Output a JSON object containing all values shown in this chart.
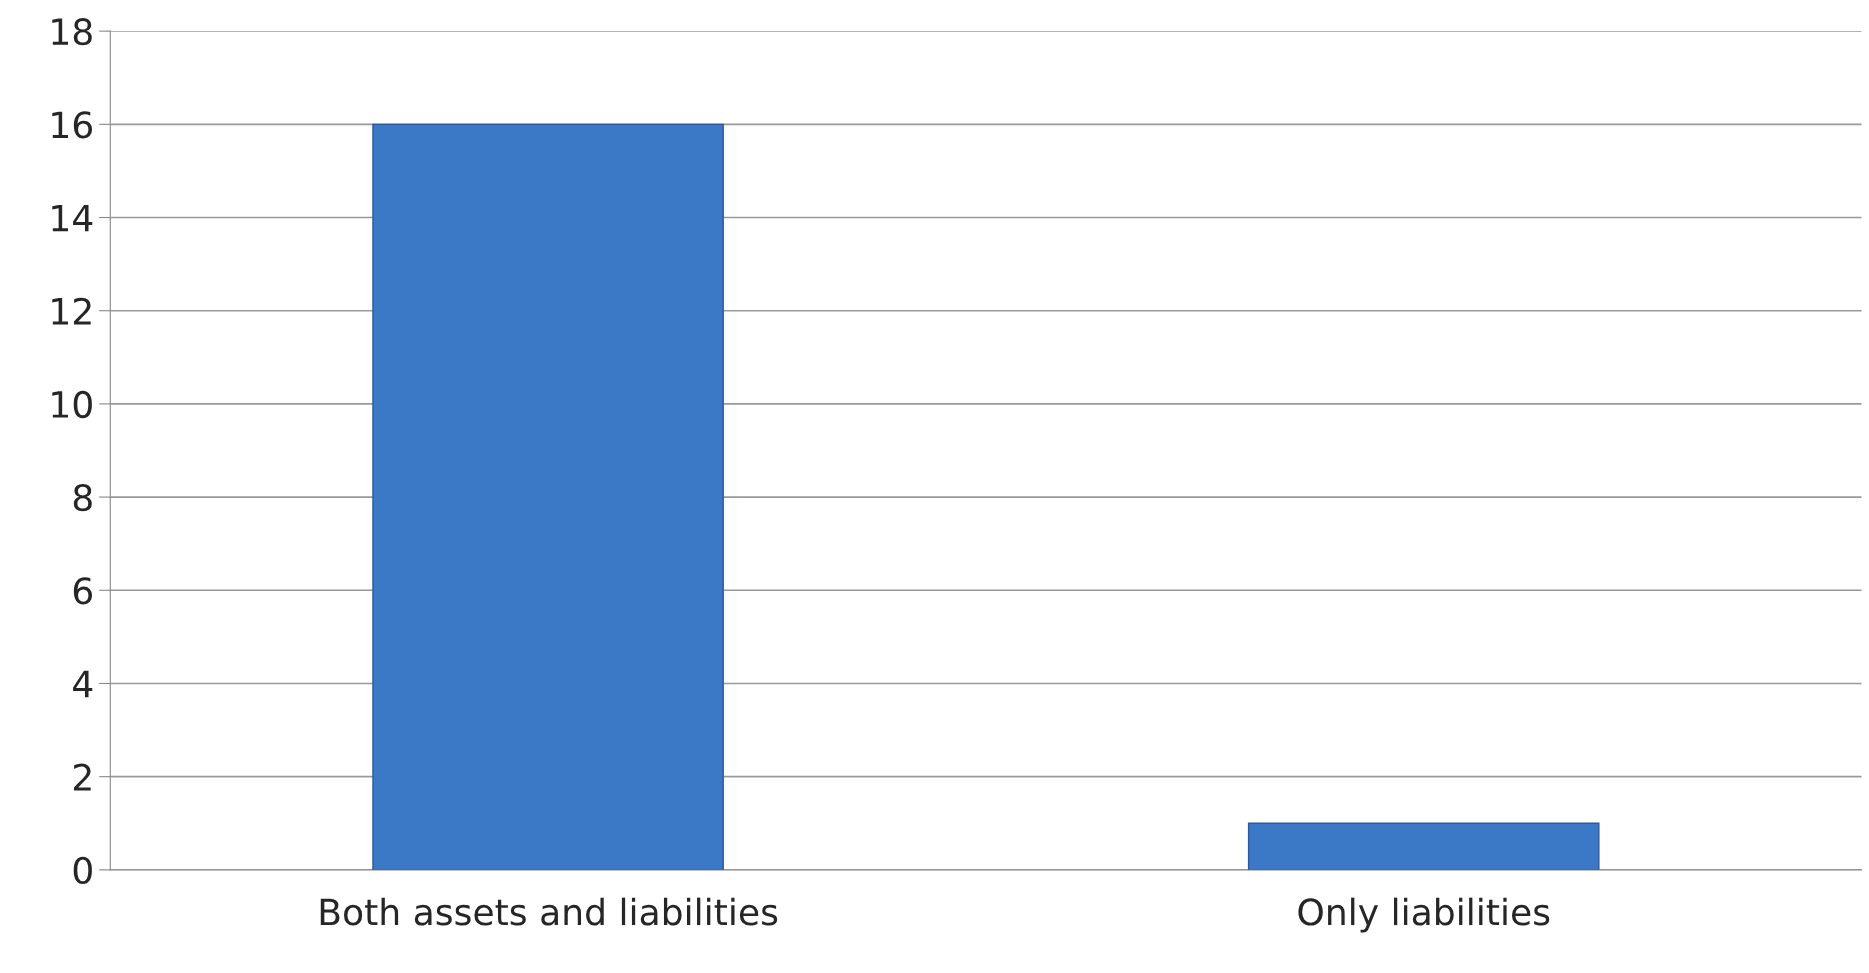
{
  "chart_data": {
    "type": "bar",
    "categories": [
      "Both assets and liabilities",
      "Only liabilities"
    ],
    "values": [
      16,
      1
    ],
    "color": "#3b78c6",
    "ylim": [
      0,
      18
    ],
    "yticks": [
      0,
      2,
      4,
      6,
      8,
      10,
      12,
      14,
      16,
      18
    ],
    "grid": "y"
  }
}
